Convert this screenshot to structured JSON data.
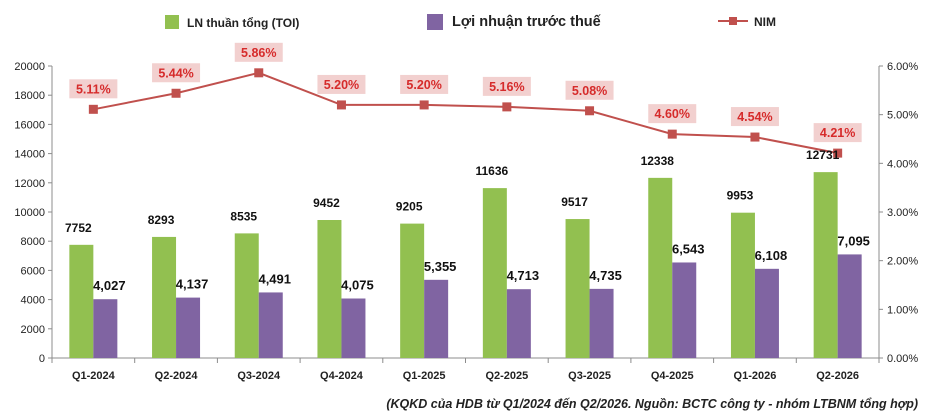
{
  "chart_data": {
    "type": "bar",
    "categories": [
      "Q1-2024",
      "Q2-2024",
      "Q3-2024",
      "Q4-2024",
      "Q1-2025",
      "Q2-2025",
      "Q3-2025",
      "Q4-2025",
      "Q1-2026",
      "Q2-2026"
    ],
    "series": [
      {
        "name": "LN thuần tổng (TOI)",
        "type": "bar",
        "axis": "left",
        "color": "#92c050",
        "values": [
          7752,
          8293,
          8535,
          9452,
          9205,
          11636,
          9517,
          12338,
          9953,
          12731
        ],
        "labels": [
          "7752",
          "8293",
          "8535",
          "9452",
          "9205",
          "11636",
          "9517",
          "12338",
          "9953",
          "12731"
        ]
      },
      {
        "name": "Lợi nhuận trước thuế",
        "type": "bar",
        "axis": "left",
        "color": "#8064a2",
        "values": [
          4027,
          4137,
          4491,
          4075,
          5355,
          4713,
          4735,
          6543,
          6108,
          7095
        ],
        "labels": [
          "4,027",
          "4,137",
          "4,491",
          "4,075",
          "5,355",
          "4,713",
          "4,735",
          "6,543",
          "6,108",
          "7,095"
        ]
      },
      {
        "name": "NIM",
        "type": "line",
        "axis": "right",
        "color": "#c0504d",
        "values": [
          5.11,
          5.44,
          5.86,
          5.2,
          5.2,
          5.16,
          5.08,
          4.6,
          4.54,
          4.21
        ],
        "labels": [
          "5.11%",
          "5.44%",
          "5.86%",
          "5.20%",
          "5.20%",
          "5.16%",
          "5.08%",
          "4.60%",
          "4.54%",
          "4.21%"
        ]
      }
    ],
    "y_left": {
      "min": 0,
      "max": 20000,
      "step": 2000,
      "ticks": [
        "0",
        "2000",
        "4000",
        "6000",
        "8000",
        "10000",
        "12000",
        "14000",
        "16000",
        "18000",
        "20000"
      ]
    },
    "y_right": {
      "min": 0,
      "max": 6,
      "step": 1,
      "ticks": [
        "0.00%",
        "1.00%",
        "2.00%",
        "3.00%",
        "4.00%",
        "5.00%",
        "6.00%"
      ]
    },
    "legend_position": "top",
    "grid": false,
    "title": "",
    "source_note": "(KQKD của HDB từ Q1/2024 đến Q2/2026. Nguồn: BCTC công ty - nhóm LTBNM tổng hợp)"
  }
}
